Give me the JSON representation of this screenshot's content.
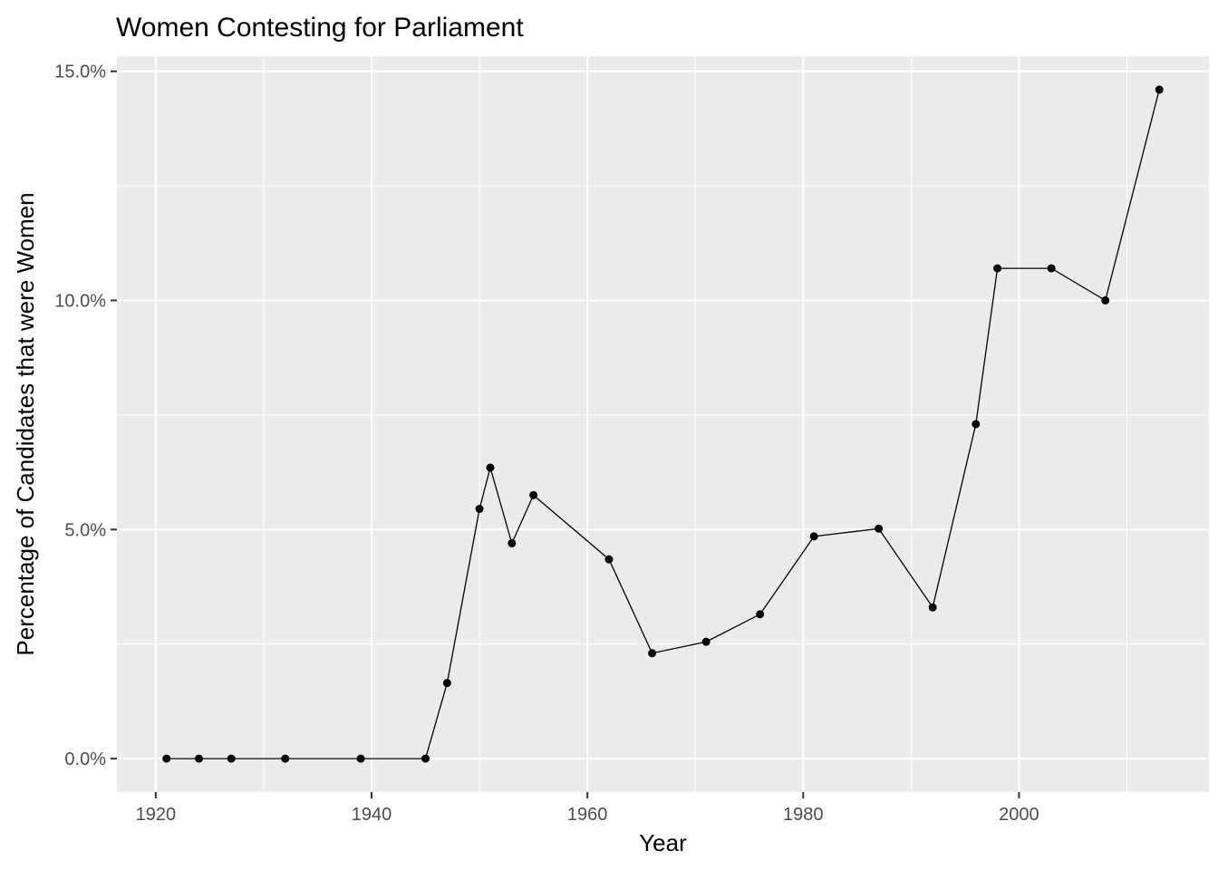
{
  "chart_data": {
    "type": "line",
    "title": "Women Contesting for Parliament",
    "xlabel": "Year",
    "ylabel": "Percentage of Candidates that were Women",
    "xlim": [
      1916.4,
      2017.6
    ],
    "ylim": [
      -0.73,
      15.33
    ],
    "x_ticks": [
      1920,
      1940,
      1960,
      1980,
      2000
    ],
    "x_tick_labels": [
      "1920",
      "1940",
      "1960",
      "1980",
      "2000"
    ],
    "x_minor_ticks": [
      1930,
      1950,
      1970,
      1990,
      2010
    ],
    "y_ticks": [
      0,
      5,
      10,
      15
    ],
    "y_tick_labels": [
      "0.0%",
      "5.0%",
      "10.0%",
      "15.0%"
    ],
    "y_minor_ticks": [
      2.5,
      7.5,
      12.5
    ],
    "grid": true,
    "legend": "none",
    "colors": {
      "panel": "#EBEBEB",
      "grid": "#FFFFFF",
      "line": "#000000",
      "point": "#000000"
    },
    "series": [
      {
        "x": [
          1921,
          1924,
          1927,
          1932,
          1939,
          1945,
          1947,
          1950,
          1951,
          1953,
          1955,
          1962,
          1966,
          1971,
          1976,
          1981,
          1987,
          1992,
          1996,
          1998,
          2003,
          2008,
          2013
        ],
        "values": [
          0.0,
          0.0,
          0.0,
          0.0,
          0.0,
          0.0,
          1.65,
          5.45,
          6.35,
          4.7,
          5.75,
          4.35,
          2.3,
          2.55,
          3.15,
          4.85,
          5.02,
          3.3,
          7.3,
          10.7,
          10.7,
          10.0,
          14.6
        ]
      }
    ]
  }
}
